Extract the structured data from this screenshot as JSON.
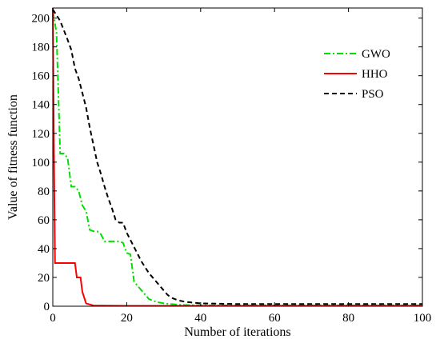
{
  "chart_data": {
    "type": "line",
    "xlabel": "Number of iterations",
    "ylabel": "Value of fitness function",
    "xlim": [
      0,
      100
    ],
    "ylim": [
      0,
      207
    ],
    "xticks": [
      0,
      20,
      40,
      60,
      80,
      100
    ],
    "yticks": [
      0,
      20,
      40,
      60,
      80,
      100,
      120,
      140,
      160,
      180,
      200
    ],
    "legend_position": "top-right",
    "grid": false,
    "series": [
      {
        "name": "GWO",
        "color": "#00e000",
        "dash": "dash-dot",
        "points": [
          [
            0,
            205
          ],
          [
            1,
            190
          ],
          [
            2,
            106
          ],
          [
            3,
            106
          ],
          [
            4,
            103
          ],
          [
            5,
            83
          ],
          [
            6,
            83
          ],
          [
            7,
            80
          ],
          [
            8,
            70
          ],
          [
            9,
            66
          ],
          [
            10,
            53
          ],
          [
            11,
            52
          ],
          [
            12,
            52
          ],
          [
            13,
            50
          ],
          [
            14,
            45
          ],
          [
            15,
            45
          ],
          [
            16,
            45
          ],
          [
            17,
            45
          ],
          [
            18,
            45
          ],
          [
            19,
            44
          ],
          [
            20,
            37
          ],
          [
            21,
            36
          ],
          [
            22,
            17
          ],
          [
            23,
            14
          ],
          [
            24,
            11
          ],
          [
            25,
            8
          ],
          [
            26,
            5
          ],
          [
            28,
            3
          ],
          [
            30,
            2
          ],
          [
            34,
            1
          ],
          [
            40,
            0.6
          ],
          [
            60,
            0.6
          ],
          [
            80,
            0.6
          ],
          [
            100,
            0.6
          ]
        ]
      },
      {
        "name": "HHO",
        "color": "#ff0000",
        "dash": "solid",
        "points": [
          [
            0,
            207
          ],
          [
            0.3,
            110
          ],
          [
            0.6,
            30
          ],
          [
            6,
            30
          ],
          [
            6.5,
            20
          ],
          [
            7,
            20
          ],
          [
            7.5,
            20
          ],
          [
            8,
            10
          ],
          [
            9,
            2
          ],
          [
            11,
            0.5
          ],
          [
            20,
            0.3
          ],
          [
            40,
            0.3
          ],
          [
            60,
            0.3
          ],
          [
            80,
            0.3
          ],
          [
            100,
            0.3
          ]
        ]
      },
      {
        "name": "PSO",
        "color": "#000000",
        "dash": "dashed",
        "points": [
          [
            0,
            206
          ],
          [
            2,
            198
          ],
          [
            4,
            185
          ],
          [
            5,
            178
          ],
          [
            6,
            165
          ],
          [
            7,
            158
          ],
          [
            8,
            148
          ],
          [
            9,
            138
          ],
          [
            10,
            124
          ],
          [
            11,
            112
          ],
          [
            12,
            100
          ],
          [
            13,
            92
          ],
          [
            14,
            83
          ],
          [
            15,
            75
          ],
          [
            16,
            68
          ],
          [
            17,
            60
          ],
          [
            18,
            58
          ],
          [
            19,
            58
          ],
          [
            20,
            51
          ],
          [
            21,
            46
          ],
          [
            22,
            41
          ],
          [
            23,
            36
          ],
          [
            24,
            31
          ],
          [
            25,
            27
          ],
          [
            26,
            23
          ],
          [
            27,
            20
          ],
          [
            28,
            17
          ],
          [
            29,
            14
          ],
          [
            30,
            11
          ],
          [
            31,
            8
          ],
          [
            32,
            6
          ],
          [
            34,
            4
          ],
          [
            36,
            3
          ],
          [
            40,
            2
          ],
          [
            50,
            1.5
          ],
          [
            60,
            1.5
          ],
          [
            80,
            1.5
          ],
          [
            100,
            1.5
          ]
        ]
      }
    ]
  }
}
